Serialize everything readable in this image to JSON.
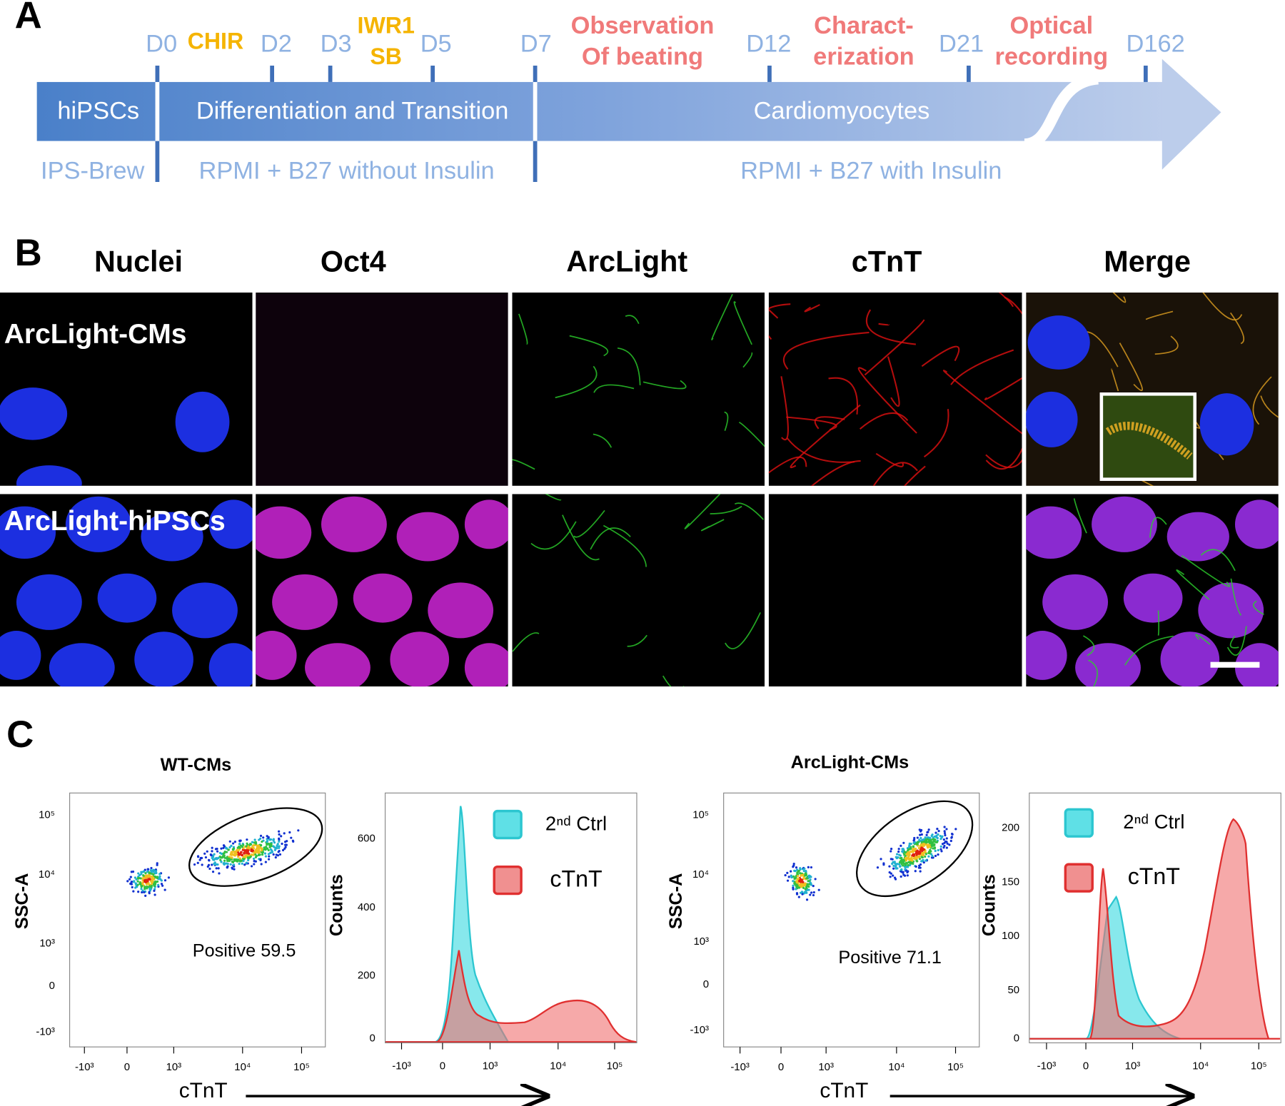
{
  "panel_a": {
    "label": "A",
    "timepoints": [
      "D0",
      "D2",
      "D3",
      "D5",
      "D7",
      "D12",
      "D21",
      "D162"
    ],
    "treatments": [
      "CHIR",
      "IWR1",
      "SB"
    ],
    "events": [
      [
        "Observation",
        "Of beating"
      ],
      [
        "Charact-",
        "erization"
      ],
      [
        "Optical",
        "recording"
      ]
    ],
    "stages": [
      "hiPSCs",
      "Differentiation and Transition",
      "Cardiomyocytes"
    ],
    "media": [
      "IPS-Brew",
      "RPMI + B27 without Insulin",
      "RPMI + B27 with Insulin"
    ]
  },
  "panel_b": {
    "label": "B",
    "columns": [
      "Nuclei",
      "Oct4",
      "ArcLight",
      "cTnT",
      "Merge"
    ],
    "rows": [
      "ArcLight-CMs",
      "ArcLight-hiPSCs"
    ]
  },
  "panel_c": {
    "label": "C",
    "groups": [
      {
        "title": "WT-CMs",
        "gate": "Positive 59.5",
        "scatter_y_label": "SSC-A",
        "x_label": "cTnT",
        "hist_y_label": "Counts",
        "scatter_y_ticks": [
          "-10³",
          "0",
          "10³",
          "10⁴",
          "10⁵"
        ],
        "scatter_x_ticks": [
          "-10³",
          "0",
          "10³",
          "10⁴",
          "10⁵"
        ],
        "hist_y_ticks": [
          0,
          200,
          400,
          600
        ],
        "hist_x_ticks": [
          "-10³",
          "0",
          "10³",
          "10⁴",
          "10⁵"
        ],
        "legend": [
          "2ⁿᵈ Ctrl",
          "cTnT"
        ]
      },
      {
        "title": "ArcLight-CMs",
        "gate": "Positive 71.1",
        "scatter_y_label": "SSC-A",
        "x_label": "cTnT",
        "hist_y_label": "Counts",
        "scatter_y_ticks": [
          "-10³",
          "0",
          "10³",
          "10⁴",
          "10⁵"
        ],
        "scatter_x_ticks": [
          "-10³",
          "0",
          "10³",
          "10⁴",
          "10⁵"
        ],
        "hist_y_ticks": [
          0,
          50,
          100,
          150,
          200
        ],
        "hist_x_ticks": [
          "-10³",
          "0",
          "10³",
          "10⁴",
          "10⁵"
        ],
        "legend": [
          "2ⁿᵈ Ctrl",
          "cTnT"
        ]
      }
    ]
  }
}
